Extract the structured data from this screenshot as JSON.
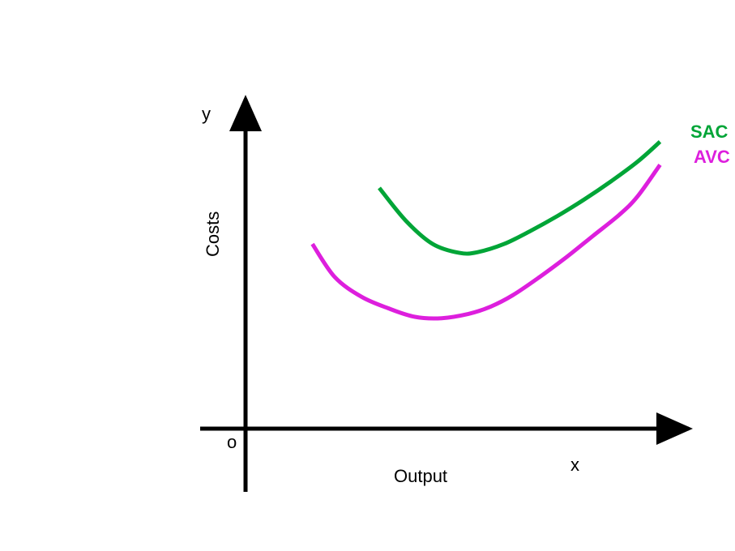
{
  "chart_data": {
    "type": "line",
    "title": "",
    "xlabel": "Output",
    "ylabel": "Costs",
    "x_axis_letter": "x",
    "y_axis_letter": "y",
    "origin_label": "o",
    "xlim": [
      0,
      100
    ],
    "ylim": [
      0,
      100
    ],
    "grid": false,
    "legend": "labels at curve ends (right)",
    "series": [
      {
        "name": "SAC",
        "color": "#00a537",
        "x": [
          30,
          36,
          42,
          48,
          52,
          58,
          64,
          70,
          76,
          82,
          88,
          93
        ],
        "y": [
          73,
          63,
          56,
          53.3,
          53.5,
          56,
          60,
          64.5,
          69.5,
          75,
          81,
          87
        ]
      },
      {
        "name": "AVC",
        "color": "#dd1fdd",
        "x": [
          15,
          20,
          26,
          32,
          38,
          44,
          50,
          55,
          60,
          66,
          72,
          78,
          84,
          88,
          93
        ],
        "y": [
          56,
          46,
          40,
          36.5,
          33.9,
          33.5,
          34.8,
          37,
          40.5,
          46,
          52,
          58.5,
          65,
          70.5,
          80
        ]
      }
    ]
  }
}
